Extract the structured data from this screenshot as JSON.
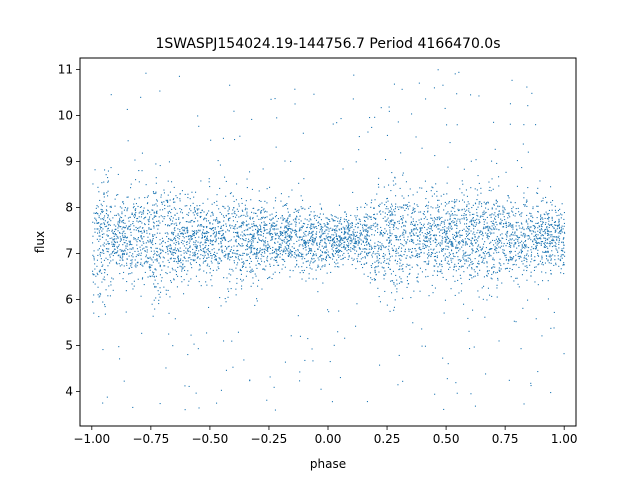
{
  "chart_data": {
    "type": "scatter",
    "title": "1SWASPJ154024.19-144756.7 Period 4166470.0s",
    "xlabel": "phase",
    "ylabel": "flux",
    "xlim": [
      -1.05,
      1.05
    ],
    "ylim": [
      3.25,
      11.25
    ],
    "x_ticks": [
      -1.0,
      -0.75,
      -0.5,
      -0.25,
      0.0,
      0.25,
      0.5,
      0.75,
      1.0
    ],
    "x_tick_labels": [
      "−1.00",
      "−0.75",
      "−0.50",
      "−0.25",
      "0.00",
      "0.25",
      "0.50",
      "0.75",
      "1.00"
    ],
    "y_ticks": [
      4,
      5,
      6,
      7,
      8,
      9,
      10,
      11
    ],
    "y_tick_labels": [
      "4",
      "5",
      "6",
      "7",
      "8",
      "9",
      "10",
      "11"
    ],
    "grid": false,
    "legend": "none",
    "marker_color": "#1f77b4",
    "series": [
      {
        "x_range": [
          -1.0,
          1.0
        ],
        "y_center": 7.35,
        "y_core_range": [
          6.4,
          8.3
        ],
        "y_min": 3.6,
        "y_max": 11.05,
        "density_profile": {
          "phase": [
            -1.0,
            -0.95,
            -0.9,
            -0.8,
            -0.7,
            -0.6,
            -0.5,
            -0.4,
            -0.3,
            -0.2,
            -0.1,
            0.0,
            0.05,
            0.1,
            0.2,
            0.3,
            0.4,
            0.5,
            0.6,
            0.7,
            0.8,
            0.9,
            1.0
          ],
          "spread": [
            1.5,
            1.3,
            0.6,
            1.2,
            1.1,
            0.9,
            0.8,
            0.9,
            0.8,
            0.7,
            0.6,
            0.55,
            0.5,
            0.45,
            0.9,
            1.1,
            0.9,
            0.8,
            0.9,
            1.1,
            0.8,
            0.7,
            0.6
          ]
        }
      }
    ]
  }
}
